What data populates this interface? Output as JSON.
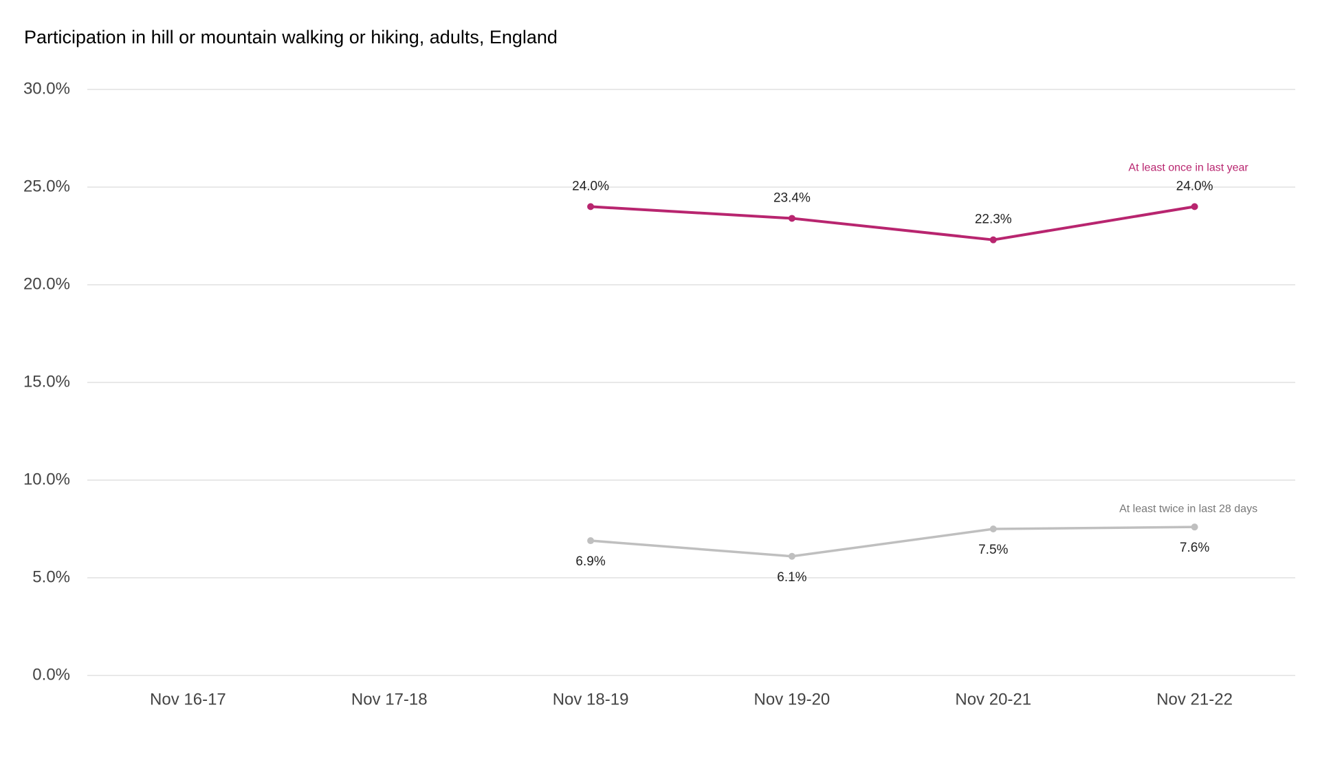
{
  "chart_data": {
    "type": "line",
    "title": "Participation in hill or mountain walking or hiking, adults, England",
    "categories": [
      "Nov 16-17",
      "Nov 17-18",
      "Nov 18-19",
      "Nov 19-20",
      "Nov 20-21",
      "Nov 21-22"
    ],
    "series": [
      {
        "name": "At least once in last year",
        "color": "#b8256f",
        "values": [
          null,
          null,
          24.0,
          23.4,
          22.3,
          24.0
        ],
        "value_labels": [
          null,
          null,
          "24.0%",
          "23.4%",
          "22.3%",
          "24.0%"
        ]
      },
      {
        "name": "At least twice in last 28 days",
        "color": "#bfbfbf",
        "values": [
          null,
          null,
          6.9,
          6.1,
          7.5,
          7.6
        ],
        "value_labels": [
          null,
          null,
          "6.9%",
          "6.1%",
          "7.5%",
          "7.6%"
        ]
      }
    ],
    "ylim": [
      0,
      30
    ],
    "yticks": [
      {
        "value": 0,
        "label": "0.0%"
      },
      {
        "value": 5,
        "label": "5.0%"
      },
      {
        "value": 10,
        "label": "10.0%"
      },
      {
        "value": 15,
        "label": "15.0%"
      },
      {
        "value": 20,
        "label": "20.0%"
      },
      {
        "value": 25,
        "label": "25.0%"
      },
      {
        "value": 30,
        "label": "30.0%"
      }
    ],
    "grid": true
  }
}
